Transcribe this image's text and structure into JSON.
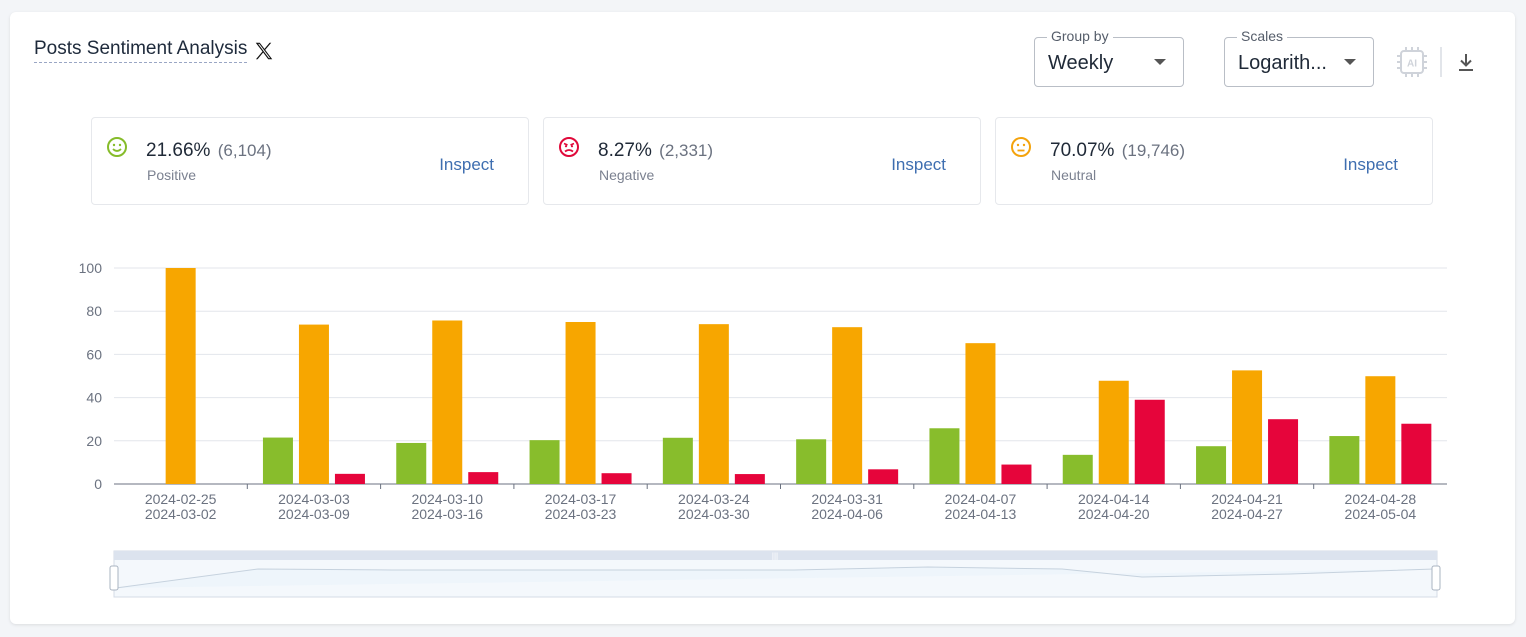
{
  "header": {
    "title": "Posts Sentiment Analysis",
    "group_by": {
      "legend": "Group by",
      "value": "Weekly"
    },
    "scales": {
      "legend": "Scales",
      "value": "Logarith..."
    }
  },
  "stats": [
    {
      "pct": "21.66%",
      "count": "(6,104)",
      "label": "Positive",
      "action": "Inspect",
      "color": "#86bc2a"
    },
    {
      "pct": "8.27%",
      "count": "(2,331)",
      "label": "Negative",
      "action": "Inspect",
      "color": "#e0093a"
    },
    {
      "pct": "70.07%",
      "count": "(19,746)",
      "label": "Neutral",
      "action": "Inspect",
      "color": "#f4a30c"
    }
  ],
  "colors": {
    "positive": "#88bd2c",
    "neutral": "#f7a600",
    "negative": "#e6053b",
    "accent": "#3e6eb0"
  },
  "chart_data": {
    "type": "bar",
    "title": "",
    "xlabel": "",
    "ylabel": "",
    "ylim": [
      0,
      100
    ],
    "yticks": [
      0,
      20,
      40,
      60,
      80,
      100
    ],
    "categories": [
      [
        "2024-02-25",
        "2024-03-02"
      ],
      [
        "2024-03-03",
        "2024-03-09"
      ],
      [
        "2024-03-10",
        "2024-03-16"
      ],
      [
        "2024-03-17",
        "2024-03-23"
      ],
      [
        "2024-03-24",
        "2024-03-30"
      ],
      [
        "2024-03-31",
        "2024-04-06"
      ],
      [
        "2024-04-07",
        "2024-04-13"
      ],
      [
        "2024-04-14",
        "2024-04-20"
      ],
      [
        "2024-04-21",
        "2024-04-27"
      ],
      [
        "2024-04-28",
        "2024-05-04"
      ]
    ],
    "series": [
      {
        "name": "Positive",
        "color": "#88bd2c",
        "values": [
          0,
          21.5,
          19,
          20.3,
          21.4,
          20.7,
          25.8,
          13.5,
          17.5,
          22.2
        ]
      },
      {
        "name": "Neutral",
        "color": "#f7a600",
        "values": [
          100,
          73.8,
          75.7,
          75,
          74,
          72.6,
          65.2,
          47.8,
          52.6,
          49.9
        ]
      },
      {
        "name": "Negative",
        "color": "#e6053b",
        "values": [
          0,
          4.7,
          5.5,
          5,
          4.6,
          6.8,
          9,
          39,
          30,
          27.9
        ]
      }
    ]
  }
}
